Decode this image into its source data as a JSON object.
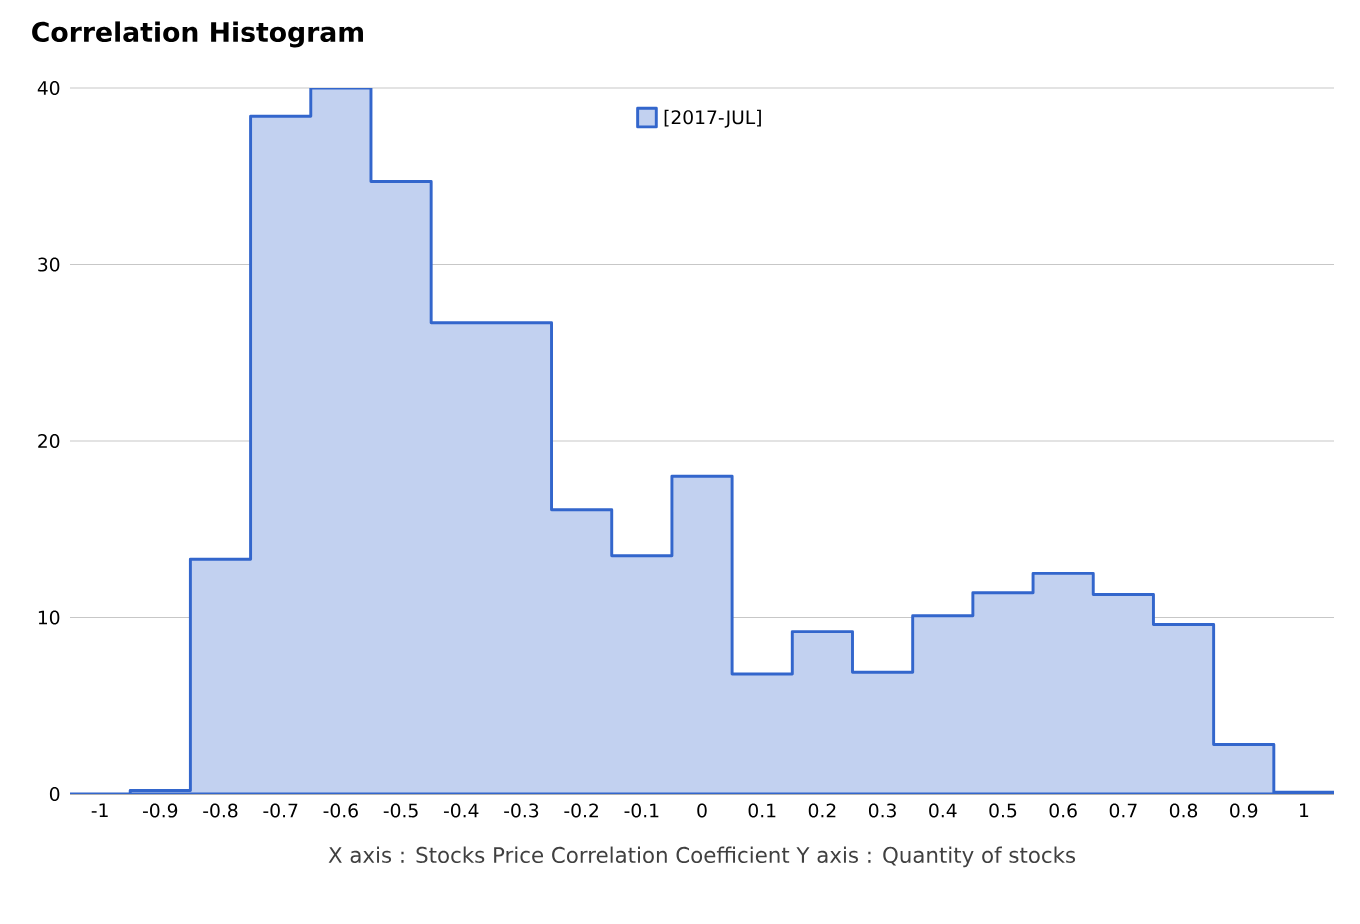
{
  "chart_data": {
    "type": "histogram",
    "title": "Correlation Histogram",
    "xlabel": "X axis : Stocks Price Correlation Coefficient  Y axis : Quantity of stocks",
    "bins": [
      -1.05,
      -0.95,
      -0.85,
      -0.75,
      -0.65,
      -0.55,
      -0.45,
      -0.35,
      -0.25,
      -0.15,
      -0.05,
      0.05,
      0.15,
      0.25,
      0.35,
      0.45,
      0.55,
      0.65,
      0.75,
      0.85,
      0.95,
      1.05
    ],
    "series": [
      {
        "name": "[2017-JUL]",
        "color": "#3366cc",
        "values": [
          0,
          0.2,
          13.3,
          38.4,
          40,
          34.7,
          26.7,
          26.7,
          16.1,
          13.5,
          18,
          6.8,
          9.2,
          6.9,
          10.1,
          11.4,
          12.5,
          11.3,
          9.6,
          2.8,
          0.1
        ]
      }
    ],
    "xlim": [
      -1.05,
      1.05
    ],
    "ylim": [
      0,
      40
    ],
    "xticks": [
      -1,
      -0.9,
      -0.8,
      -0.7,
      -0.6,
      -0.5,
      -0.4,
      -0.3,
      -0.2,
      -0.1,
      0,
      0.1,
      0.2,
      0.3,
      0.4,
      0.5,
      0.6,
      0.7,
      0.8,
      0.9,
      1
    ],
    "yticks": [
      0,
      10,
      20,
      30,
      40
    ],
    "grid": "y",
    "legend": "top"
  }
}
